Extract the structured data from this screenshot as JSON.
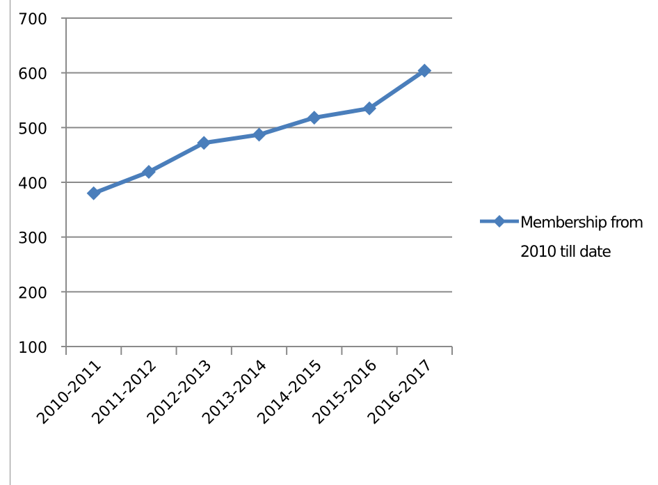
{
  "chart_data": {
    "type": "line",
    "title": "",
    "xlabel": "",
    "ylabel": "",
    "categories": [
      "2010-2011",
      "2011-2012",
      "2012-2013",
      "2013-2014",
      "2014-2015",
      "2015-2016",
      "2016-2017"
    ],
    "series": [
      {
        "name": "Membership from 2010 till date",
        "values": [
          380,
          419,
          472,
          487,
          518,
          535,
          604
        ],
        "color": "#4a7ebb",
        "marker": "diamond"
      }
    ],
    "ylim": [
      100,
      700
    ],
    "yticks": [
      100,
      200,
      300,
      400,
      500,
      600,
      700
    ],
    "grid": true,
    "legend_position": "right"
  }
}
